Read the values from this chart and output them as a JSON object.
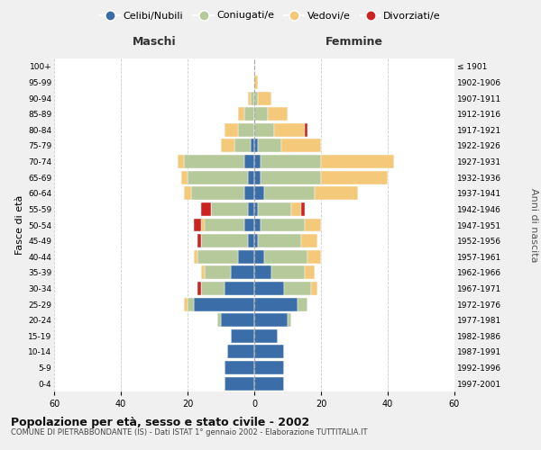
{
  "age_groups": [
    "0-4",
    "5-9",
    "10-14",
    "15-19",
    "20-24",
    "25-29",
    "30-34",
    "35-39",
    "40-44",
    "45-49",
    "50-54",
    "55-59",
    "60-64",
    "65-69",
    "70-74",
    "75-79",
    "80-84",
    "85-89",
    "90-94",
    "95-99",
    "100+"
  ],
  "birth_years": [
    "1997-2001",
    "1992-1996",
    "1987-1991",
    "1982-1986",
    "1977-1981",
    "1972-1976",
    "1967-1971",
    "1962-1966",
    "1957-1961",
    "1952-1956",
    "1947-1951",
    "1942-1946",
    "1937-1941",
    "1932-1936",
    "1927-1931",
    "1922-1926",
    "1917-1921",
    "1912-1916",
    "1907-1911",
    "1902-1906",
    "≤ 1901"
  ],
  "maschi": {
    "celibi": [
      9,
      9,
      8,
      7,
      10,
      18,
      9,
      7,
      5,
      2,
      3,
      2,
      3,
      2,
      3,
      1,
      0,
      0,
      0,
      0,
      0
    ],
    "coniugati": [
      0,
      0,
      0,
      0,
      1,
      2,
      7,
      8,
      12,
      14,
      12,
      11,
      16,
      18,
      18,
      5,
      5,
      3,
      1,
      0,
      0
    ],
    "vedovi": [
      0,
      0,
      0,
      0,
      0,
      1,
      0,
      1,
      1,
      0,
      1,
      0,
      2,
      2,
      2,
      4,
      4,
      2,
      1,
      0,
      0
    ],
    "divorziati": [
      0,
      0,
      0,
      0,
      0,
      0,
      1,
      0,
      0,
      1,
      2,
      3,
      0,
      0,
      0,
      0,
      0,
      0,
      0,
      0,
      0
    ]
  },
  "femmine": {
    "nubili": [
      9,
      9,
      9,
      7,
      10,
      13,
      9,
      5,
      3,
      1,
      2,
      1,
      3,
      2,
      2,
      1,
      0,
      0,
      0,
      0,
      0
    ],
    "coniugate": [
      0,
      0,
      0,
      0,
      1,
      3,
      8,
      10,
      13,
      13,
      13,
      10,
      15,
      18,
      18,
      7,
      6,
      4,
      1,
      0,
      0
    ],
    "vedove": [
      0,
      0,
      0,
      0,
      0,
      0,
      2,
      3,
      4,
      5,
      5,
      3,
      13,
      20,
      22,
      12,
      9,
      6,
      4,
      1,
      0
    ],
    "divorziate": [
      0,
      0,
      0,
      0,
      0,
      0,
      0,
      0,
      0,
      0,
      0,
      1,
      0,
      0,
      0,
      0,
      1,
      0,
      0,
      0,
      0
    ]
  },
  "colors": {
    "celibi_nubili": "#3b6ea8",
    "coniugati": "#b5c99a",
    "vedovi": "#f5c97a",
    "divorziati": "#cc2222"
  },
  "xlim": 60,
  "title": "Popolazione per età, sesso e stato civile - 2002",
  "subtitle": "COMUNE DI PIETRABBONDANTE (IS) - Dati ISTAT 1° gennaio 2002 - Elaborazione TUTTITALIA.IT",
  "ylabel": "Fasce di età",
  "right_ylabel": "Anni di nascita",
  "left_header": "Maschi",
  "right_header": "Femmine",
  "bg_color": "#f0f0f0",
  "plot_bg": "#ffffff"
}
